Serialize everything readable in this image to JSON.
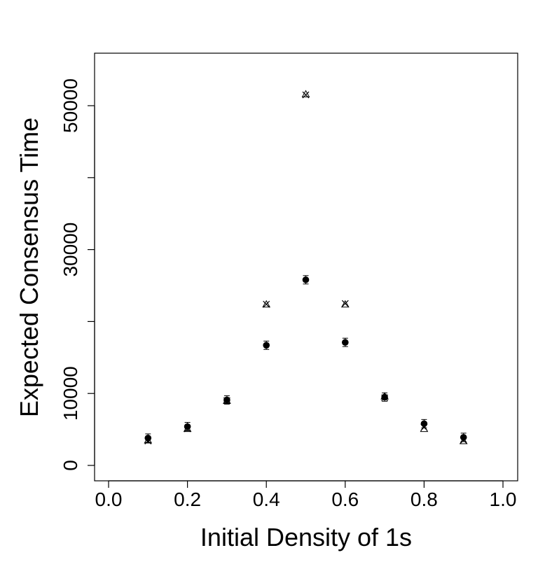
{
  "chart_data": {
    "type": "scatter",
    "title": "",
    "xlabel": "Initial Density of 1s",
    "ylabel": "Expected Consensus Time",
    "xlim": [
      0.0,
      1.0
    ],
    "ylim": [
      0,
      60000
    ],
    "x_ticks": [
      "0.0",
      "0.2",
      "0.4",
      "0.6",
      "0.8",
      "1.0"
    ],
    "y_ticks": [
      "0",
      "10000",
      "30000",
      "50000"
    ],
    "y_minor_ticks": [
      20000,
      40000
    ],
    "grid": false,
    "series": [
      {
        "marker": "filled-circle",
        "x": [
          0.1,
          0.2,
          0.3,
          0.4,
          0.5,
          0.6,
          0.7,
          0.8,
          0.9
        ],
        "y": [
          3800,
          5400,
          9100,
          16700,
          25800,
          17100,
          9500,
          5800,
          3900
        ]
      },
      {
        "marker": "cross",
        "x": [
          0.1,
          0.2,
          0.3,
          0.4,
          0.5,
          0.6,
          0.7,
          0.8,
          0.9
        ],
        "y": [
          3400,
          5100,
          9000,
          22400,
          51500,
          22500,
          9400,
          5300,
          3500
        ]
      },
      {
        "marker": "triangle",
        "x": [
          0.1,
          0.2,
          0.3,
          0.4,
          0.5,
          0.6,
          0.7,
          0.8,
          0.9
        ],
        "y": [
          3500,
          5100,
          9000,
          22400,
          51600,
          22400,
          9600,
          5100,
          3400
        ]
      }
    ]
  }
}
